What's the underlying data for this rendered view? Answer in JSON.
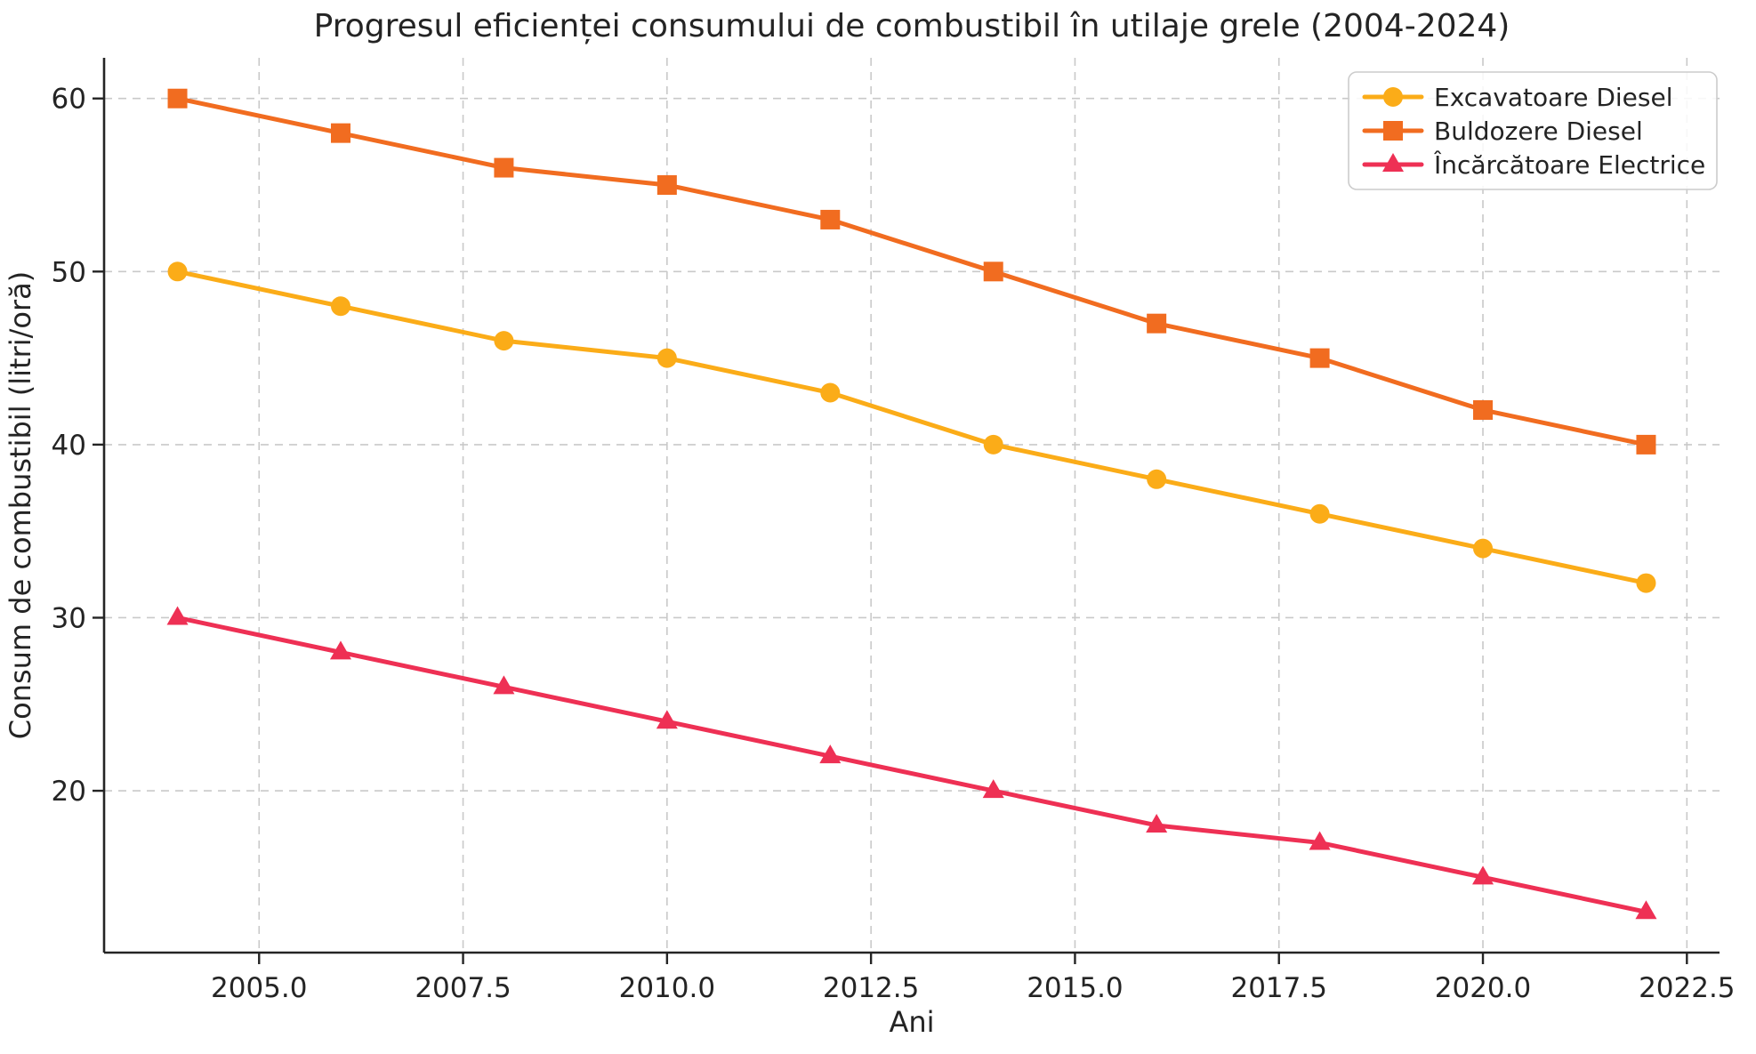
{
  "chart_data": {
    "type": "line",
    "title": "Progresul eficienței consumului de combustibil în utilaje grele (2004-2024)",
    "xlabel": "Ani",
    "ylabel": "Consum de combustibil (litri/oră)",
    "x": [
      2004,
      2006,
      2008,
      2010,
      2012,
      2014,
      2016,
      2018,
      2020,
      2022
    ],
    "series": [
      {
        "name": "Excavatoare Diesel",
        "marker": "circle",
        "color": "#FBAC18",
        "values": [
          50,
          48,
          46,
          45,
          43,
          40,
          38,
          36,
          34,
          32
        ]
      },
      {
        "name": "Buldozere Diesel",
        "marker": "square",
        "color": "#F16C20",
        "values": [
          60,
          58,
          56,
          55,
          53,
          50,
          47,
          45,
          42,
          40
        ]
      },
      {
        "name": "Încărcătoare Electrice",
        "marker": "triangle",
        "color": "#EE3054",
        "values": [
          30,
          28,
          26,
          24,
          22,
          20,
          18,
          17,
          15,
          13
        ]
      }
    ],
    "xlim": [
      2003.1,
      2022.9
    ],
    "ylim": [
      10.65,
      62.35
    ],
    "xticks": [
      2005.0,
      2007.5,
      2010.0,
      2012.5,
      2015.0,
      2017.5,
      2020.0,
      2022.5
    ],
    "xtick_labels": [
      "2005.0",
      "2007.5",
      "2010.0",
      "2012.5",
      "2015.0",
      "2017.5",
      "2020.0",
      "2022.5"
    ],
    "yticks": [
      20,
      30,
      40,
      50,
      60
    ],
    "ytick_labels": [
      "20",
      "30",
      "40",
      "50",
      "60"
    ],
    "grid": true,
    "grid_style": "dashed",
    "legend_position": "upper-right"
  },
  "style": {
    "background": "#ffffff",
    "grid_color": "#c9c9c9",
    "spine_color": "#242424",
    "text_color": "#242424",
    "legend_border_color": "#cccccc",
    "legend_background": "#ffffff"
  }
}
